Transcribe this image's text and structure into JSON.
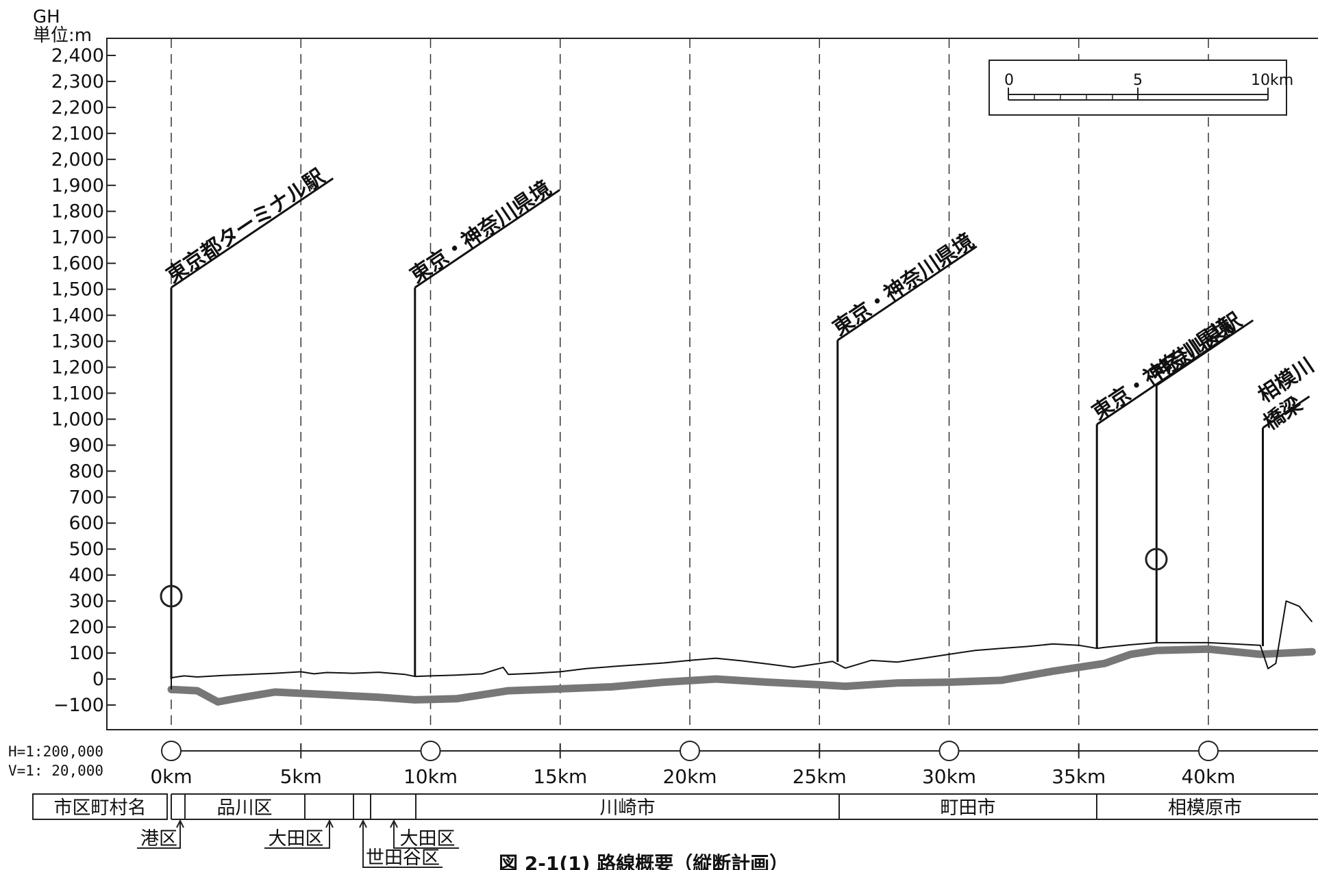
{
  "header": {
    "line1": "GH",
    "line2": "単位:m"
  },
  "y_ticks": [
    "2,400",
    "2,300",
    "2,200",
    "2,100",
    "2,000",
    "1,900",
    "1,800",
    "1,700",
    "1,600",
    "1,500",
    "1,400",
    "1,300",
    "1,200",
    "1,100",
    "1,000",
    "900",
    "800",
    "700",
    "600",
    "500",
    "400",
    "300",
    "200",
    "100",
    "0",
    "−100"
  ],
  "km_labels": [
    "0km",
    "5km",
    "10km",
    "15km",
    "20km",
    "25km",
    "30km",
    "35km",
    "40km"
  ],
  "scale_notes": {
    "h": "H=1:200,000",
    "v": "V=1: 20,000"
  },
  "scale_bar": {
    "labels": [
      "0",
      "5",
      "10km"
    ]
  },
  "callouts": [
    {
      "text": "東京都ターミナル駅",
      "km": 0
    },
    {
      "text": "東京・神奈川県境",
      "km": 9.4
    },
    {
      "text": "東京・神奈川県境",
      "km": 25.7
    },
    {
      "text": "東京・神奈川県境",
      "km": 35.7
    },
    {
      "text": "神奈川県駅",
      "km": 38
    },
    {
      "text": "相模川",
      "km": 42.1
    },
    {
      "text": "橋梁",
      "km": 42.1
    }
  ],
  "municipality_row": {
    "header": "市区町村名",
    "cells": [
      "品川区",
      "川崎市",
      "町田市",
      "相模原市"
    ],
    "pointers": [
      "港区",
      "大田区",
      "世田谷区",
      "大田区"
    ]
  },
  "caption": "図 2-1(1) 路線概要（縦断計画）",
  "chart_data": {
    "type": "line",
    "x_unit": "km",
    "y_unit": "m",
    "ylim": [
      -100,
      2400
    ],
    "xlim": [
      0,
      44
    ],
    "series": [
      {
        "x": [
          0,
          0.5,
          1,
          2,
          3,
          4,
          5,
          5.5,
          6,
          7,
          8,
          9,
          9.4,
          10,
          11,
          12,
          12.8,
          13,
          14,
          15,
          16,
          17,
          18,
          19,
          20,
          21,
          22,
          23,
          24,
          25,
          25.5,
          26,
          27,
          28,
          29,
          30,
          31,
          32,
          33,
          34,
          35,
          35.7,
          36,
          37,
          38,
          39,
          40,
          41,
          42,
          42.3,
          42.6,
          43,
          43.5,
          44
        ],
        "y": [
          5,
          12,
          8,
          14,
          18,
          22,
          28,
          20,
          25,
          22,
          26,
          18,
          10,
          12,
          15,
          20,
          45,
          18,
          22,
          28,
          40,
          48,
          55,
          62,
          72,
          80,
          70,
          58,
          45,
          60,
          68,
          42,
          72,
          65,
          80,
          95,
          110,
          118,
          125,
          135,
          130,
          118,
          122,
          132,
          140,
          140,
          140,
          135,
          130,
          40,
          60,
          300,
          280,
          220
        ]
      },
      {
        "x": [
          0,
          1,
          1.8,
          2.5,
          4,
          6,
          8,
          9.4,
          11,
          13,
          15,
          17,
          19,
          21,
          23,
          25,
          26,
          28,
          30,
          32,
          34,
          36,
          37,
          38,
          40,
          42,
          44
        ],
        "y": [
          -40,
          -45,
          -88,
          -75,
          -50,
          -60,
          -70,
          -80,
          -76,
          -45,
          -38,
          -30,
          -12,
          0,
          -12,
          -22,
          -28,
          -15,
          -12,
          -5,
          30,
          60,
          95,
          110,
          115,
          95,
          105
        ]
      }
    ]
  }
}
